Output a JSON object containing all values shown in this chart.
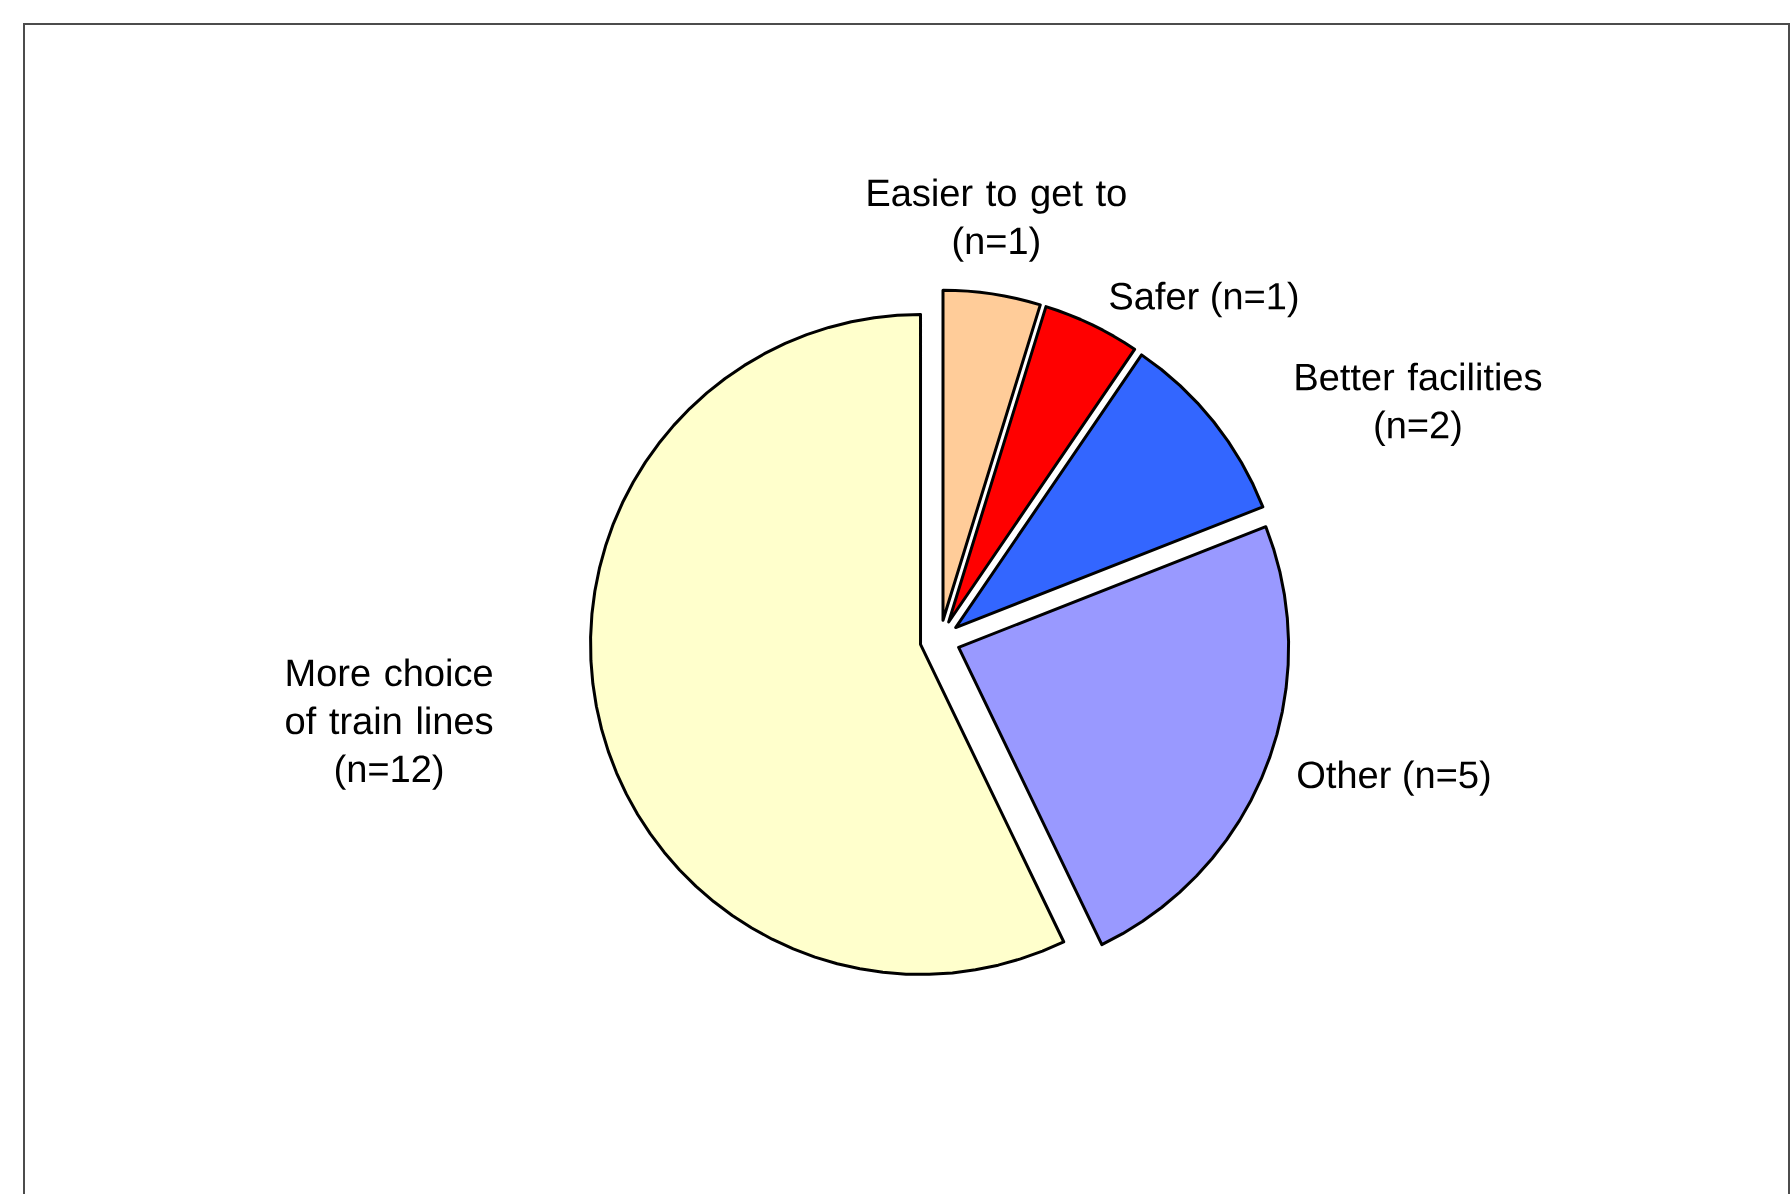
{
  "chart_data": {
    "type": "pie",
    "categories": [
      "Easier to get to",
      "Safer",
      "Better facilities",
      "Other",
      "More choice of train lines"
    ],
    "values": [
      1,
      1,
      2,
      5,
      12
    ],
    "value_labels": [
      "(n=1)",
      "(n=1)",
      "(n=2)",
      "(n=5)",
      "(n=12)"
    ],
    "colors": [
      "#ffcc99",
      "#ff0000",
      "#3366ff",
      "#9999ff",
      "#ffffcc"
    ]
  }
}
